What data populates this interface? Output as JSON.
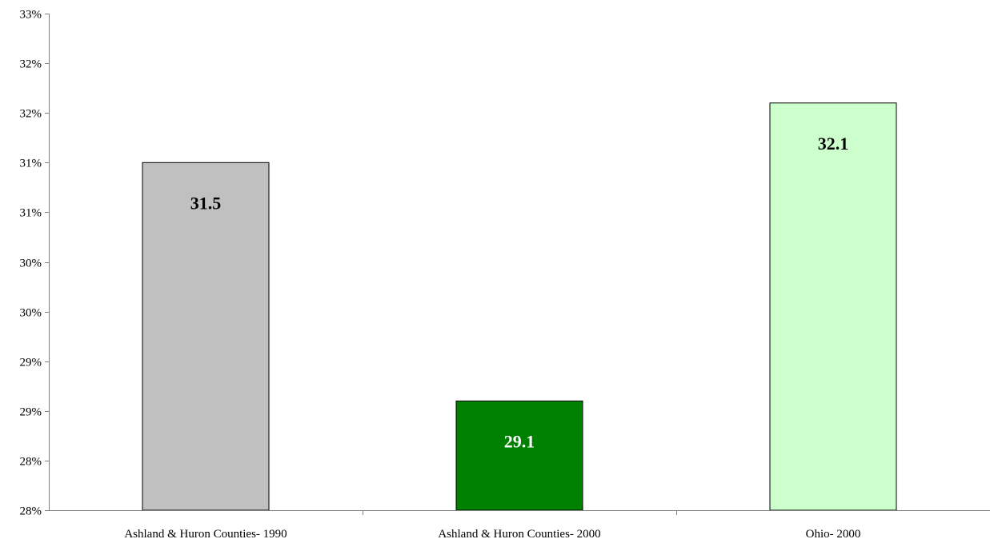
{
  "chart_data": {
    "type": "bar",
    "title": "",
    "xlabel": "",
    "ylabel": "",
    "ylim": [
      28,
      33
    ],
    "y_tick_labels": [
      "28%",
      "28%",
      "29%",
      "29%",
      "30%",
      "30%",
      "31%",
      "31%",
      "32%",
      "32%",
      "33%"
    ],
    "categories": [
      "Ashland & Huron Counties- 1990",
      "Ashland & Huron Counties- 2000",
      "Ohio- 2000"
    ],
    "values": [
      31.5,
      29.1,
      32.1
    ],
    "data_labels": [
      "31.5",
      "29.1",
      "32.1"
    ],
    "bar_colors": [
      "#c0c0c0",
      "#008000",
      "#ccffcc"
    ],
    "data_label_colors": [
      "#000000",
      "#ffffff",
      "#000000"
    ],
    "grid": false,
    "legend": "none"
  }
}
